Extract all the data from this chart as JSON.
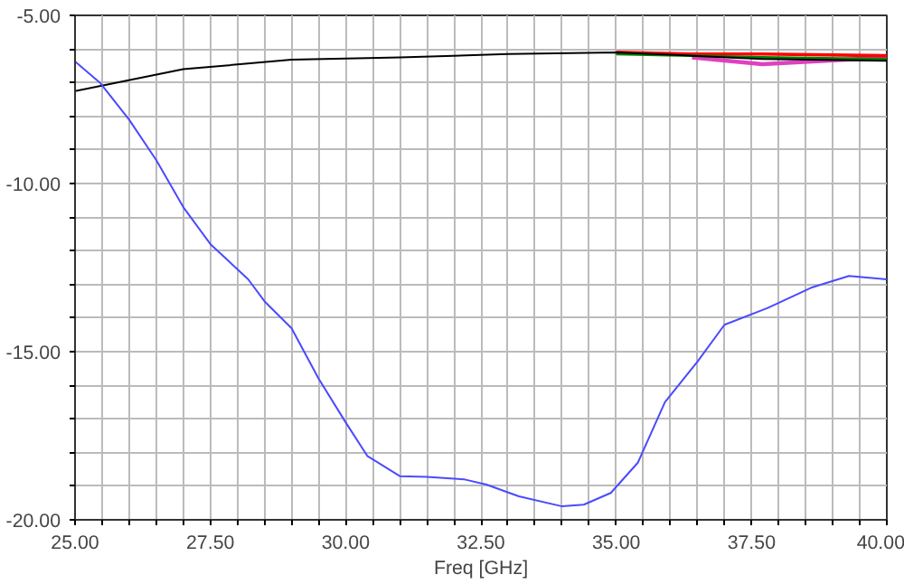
{
  "chart_data": {
    "type": "line",
    "xlabel": "Freq [GHz]",
    "xlim": [
      25,
      40
    ],
    "ylim": [
      -20,
      -5
    ],
    "grid": true,
    "line_style": "solid",
    "marker": "none",
    "xticks": [
      {
        "value": 25,
        "label": "25.00"
      },
      {
        "value": 25.5,
        "label": null
      },
      {
        "value": 26,
        "label": null
      },
      {
        "value": 26.5,
        "label": null
      },
      {
        "value": 27,
        "label": null
      },
      {
        "value": 27.5,
        "label": "27.50"
      },
      {
        "value": 28,
        "label": null
      },
      {
        "value": 28.5,
        "label": null
      },
      {
        "value": 29,
        "label": null
      },
      {
        "value": 29.5,
        "label": null
      },
      {
        "value": 30,
        "label": "30.00"
      },
      {
        "value": 30.5,
        "label": null
      },
      {
        "value": 31,
        "label": null
      },
      {
        "value": 31.5,
        "label": null
      },
      {
        "value": 32,
        "label": null
      },
      {
        "value": 32.5,
        "label": "32.50"
      },
      {
        "value": 33,
        "label": null
      },
      {
        "value": 33.5,
        "label": null
      },
      {
        "value": 34,
        "label": null
      },
      {
        "value": 34.5,
        "label": null
      },
      {
        "value": 35,
        "label": "35.00"
      },
      {
        "value": 35.5,
        "label": null
      },
      {
        "value": 36,
        "label": null
      },
      {
        "value": 36.5,
        "label": null
      },
      {
        "value": 37,
        "label": null
      },
      {
        "value": 37.5,
        "label": "37.50"
      },
      {
        "value": 38,
        "label": null
      },
      {
        "value": 38.5,
        "label": null
      },
      {
        "value": 39,
        "label": null
      },
      {
        "value": 39.5,
        "label": null
      },
      {
        "value": 40,
        "label": "40.00"
      }
    ],
    "yticks": [
      {
        "value": -20,
        "label": "-20.00"
      },
      {
        "value": -19,
        "label": null
      },
      {
        "value": -18,
        "label": null
      },
      {
        "value": -17,
        "label": null
      },
      {
        "value": -16,
        "label": null
      },
      {
        "value": -15,
        "label": "-15.00"
      },
      {
        "value": -14,
        "label": null
      },
      {
        "value": -13,
        "label": null
      },
      {
        "value": -12,
        "label": null
      },
      {
        "value": -11,
        "label": null
      },
      {
        "value": -10,
        "label": "-10.00"
      },
      {
        "value": -9,
        "label": null
      },
      {
        "value": -8,
        "label": null
      },
      {
        "value": -7,
        "label": null
      },
      {
        "value": -6,
        "label": null
      },
      {
        "value": -5,
        "label": "-5.00"
      }
    ],
    "series": [
      {
        "color": "#e040c0",
        "x": [
          36.4,
          37.7,
          40
        ],
        "values": [
          -6.25,
          -6.45,
          -6.25
        ]
      },
      {
        "color": "#ff0000",
        "x": [
          35,
          36.4,
          37.7,
          40
        ],
        "values": [
          -6.1,
          -6.15,
          -6.15,
          -6.2
        ]
      },
      {
        "color": "#008000",
        "x": [
          35,
          36.4,
          37.7,
          40
        ],
        "values": [
          -6.15,
          -6.2,
          -6.25,
          -6.3
        ]
      },
      {
        "color": "#000000",
        "x": [
          25,
          27,
          29,
          31,
          33,
          35,
          36.4,
          37.7,
          40
        ],
        "values": [
          -7.25,
          -6.6,
          -6.32,
          -6.25,
          -6.15,
          -6.1,
          -6.2,
          -6.3,
          -6.35
        ]
      },
      {
        "color": "#4a4aff",
        "x": [
          25,
          25.46,
          26,
          26.5,
          27,
          27.5,
          28.2,
          28.5,
          29,
          29.5,
          30,
          30.4,
          31,
          31.5,
          32.2,
          32.6,
          33.2,
          34,
          34.4,
          34.9,
          35.4,
          35.9,
          36.5,
          37,
          37.8,
          38.6,
          39.3,
          40
        ],
        "values": [
          -6.37,
          -7.0,
          -8.1,
          -9.3,
          -10.7,
          -11.8,
          -12.85,
          -13.5,
          -14.3,
          -15.8,
          -17.1,
          -18.1,
          -18.7,
          -18.72,
          -18.8,
          -18.95,
          -19.3,
          -19.6,
          -19.55,
          -19.2,
          -18.3,
          -16.5,
          -15.3,
          -14.2,
          -13.7,
          -13.1,
          -12.75,
          -12.85
        ]
      }
    ]
  }
}
